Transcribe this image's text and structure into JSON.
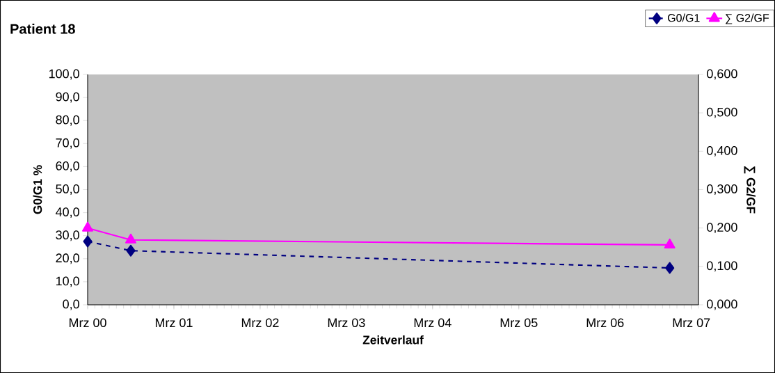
{
  "chart_data": {
    "type": "line",
    "title": "Patient 18",
    "xlabel": "Zeitverlauf",
    "ylabel": "G0/G1 %",
    "y2label": "∑ G2/GF",
    "x": [
      "2000-03",
      "2000-09",
      "2006-12"
    ],
    "xlim": [
      "2000-03",
      "2007-04"
    ],
    "xticks": [
      {
        "value": "2000-03",
        "label": "Mrz 00"
      },
      {
        "value": "2001-03",
        "label": "Mrz 01"
      },
      {
        "value": "2002-03",
        "label": "Mrz 02"
      },
      {
        "value": "2003-03",
        "label": "Mrz 03"
      },
      {
        "value": "2004-03",
        "label": "Mrz 04"
      },
      {
        "value": "2005-03",
        "label": "Mrz 05"
      },
      {
        "value": "2006-03",
        "label": "Mrz 06"
      },
      {
        "value": "2007-03",
        "label": "Mrz 07"
      }
    ],
    "ylim": [
      0,
      100
    ],
    "yticks": [
      {
        "value": 0,
        "label": "0,0"
      },
      {
        "value": 10,
        "label": "10,0"
      },
      {
        "value": 20,
        "label": "20,0"
      },
      {
        "value": 30,
        "label": "30,0"
      },
      {
        "value": 40,
        "label": "40,0"
      },
      {
        "value": 50,
        "label": "50,0"
      },
      {
        "value": 60,
        "label": "60,0"
      },
      {
        "value": 70,
        "label": "70,0"
      },
      {
        "value": 80,
        "label": "80,0"
      },
      {
        "value": 90,
        "label": "90,0"
      },
      {
        "value": 100,
        "label": "100,0"
      }
    ],
    "y2lim": [
      0,
      0.6
    ],
    "y2ticks": [
      {
        "value": 0,
        "label": "0,000"
      },
      {
        "value": 0.1,
        "label": "0,100"
      },
      {
        "value": 0.2,
        "label": "0,200"
      },
      {
        "value": 0.3,
        "label": "0,300"
      },
      {
        "value": 0.4,
        "label": "0,400"
      },
      {
        "value": 0.5,
        "label": "0,500"
      },
      {
        "value": 0.6,
        "label": "0,600"
      }
    ],
    "legend": "top right",
    "grid": false,
    "series": [
      {
        "name": "G0/G1",
        "color": "#000080",
        "values": [
          27.5,
          23.5,
          16
        ],
        "marker": "diamond",
        "line_style": "dashed"
      },
      {
        "name": "∑ G2/GF",
        "color": "#ff00ff",
        "values": [
          0.2,
          0.169,
          0.156
        ],
        "axis": "y2",
        "marker": "triangle",
        "line_style": "solid"
      }
    ]
  }
}
